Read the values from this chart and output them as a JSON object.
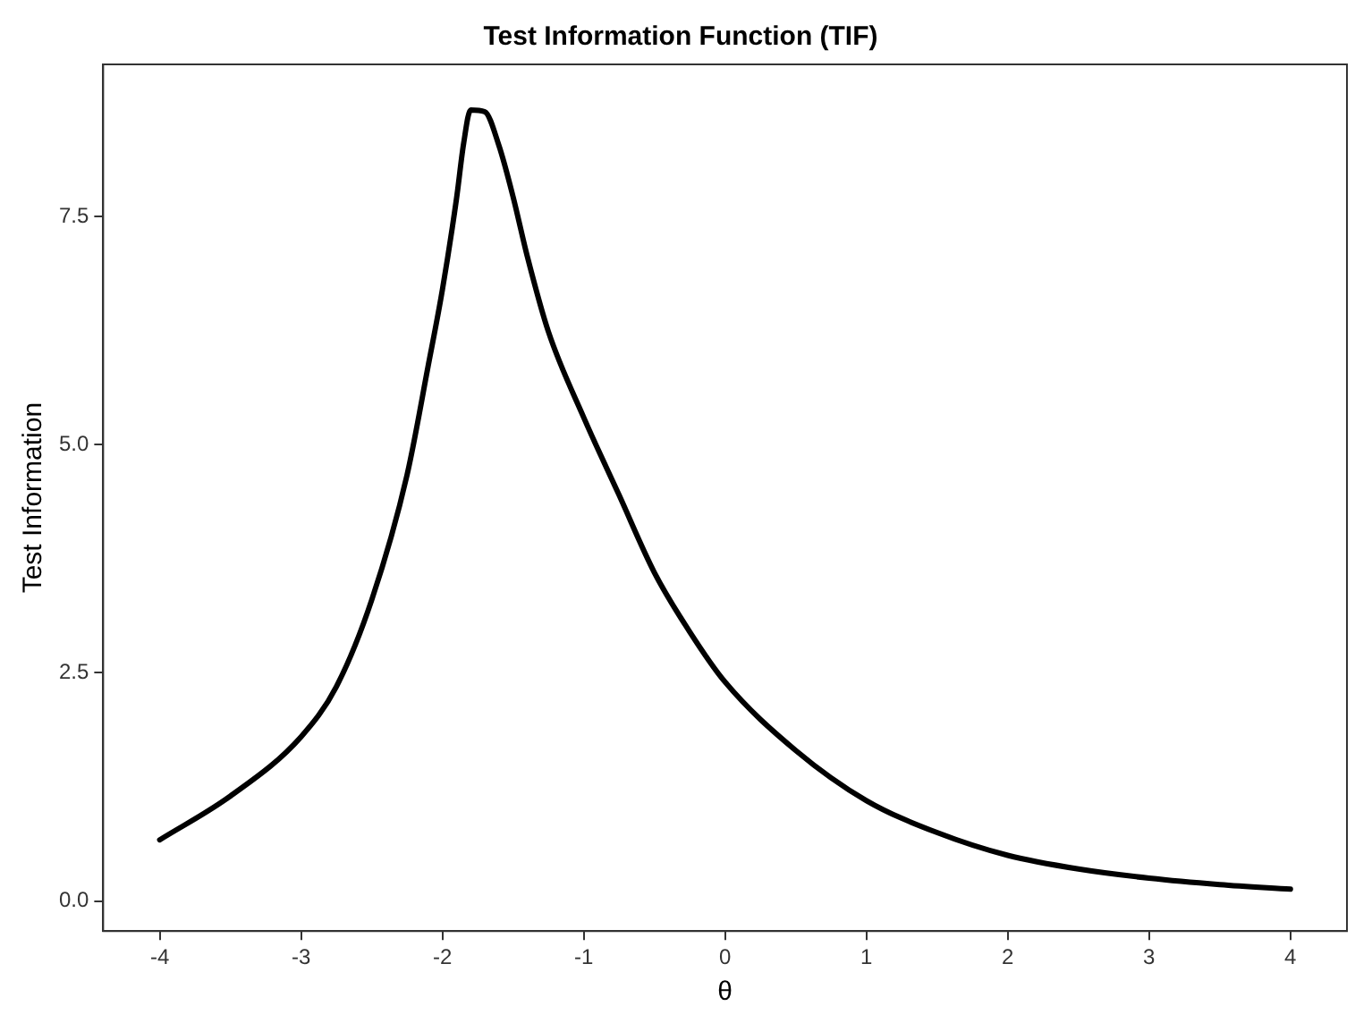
{
  "chart_data": {
    "type": "line",
    "title": "Test Information Function (TIF)",
    "xlabel": "θ",
    "ylabel": "Test Information",
    "x": [
      -4,
      -3.5,
      -3,
      -2.75,
      -2.5,
      -2.25,
      -2.1,
      -2,
      -1.9,
      -1.85,
      -1.8,
      -1.7,
      -1.6,
      -1.5,
      -1.4,
      -1.25,
      -1,
      -0.75,
      -0.5,
      -0.25,
      0,
      0.5,
      1,
      1.5,
      2,
      2.5,
      3,
      3.5,
      4
    ],
    "series": [
      {
        "color": "#000000",
        "values": [
          0.67,
          1.15,
          1.8,
          2.35,
          3.3,
          4.67,
          5.87,
          6.7,
          7.7,
          8.3,
          8.67,
          8.65,
          8.28,
          7.72,
          7.07,
          6.24,
          5.3,
          4.45,
          3.6,
          2.95,
          2.4,
          1.65,
          1.1,
          0.75,
          0.5,
          0.35,
          0.25,
          0.18,
          0.13
        ]
      }
    ],
    "xlim": [
      -4.4,
      4.4
    ],
    "ylim": [
      -0.33,
      9.17
    ],
    "xticks": [
      -4,
      -3,
      -2,
      -1,
      0,
      1,
      2,
      3,
      4
    ],
    "yticks": [
      {
        "value": 0,
        "label": "0.0"
      },
      {
        "value": 2.5,
        "label": "2.5"
      },
      {
        "value": 5,
        "label": "5.0"
      },
      {
        "value": 7.5,
        "label": "7.5"
      }
    ],
    "grid": false,
    "legend": false,
    "marker": "none",
    "line_style": "solid"
  }
}
